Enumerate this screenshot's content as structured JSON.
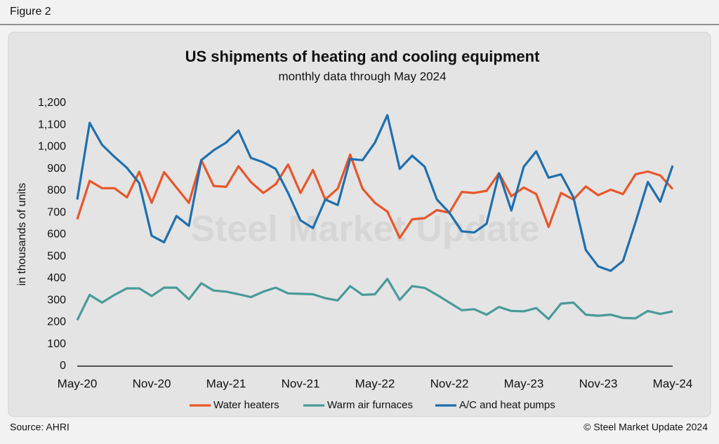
{
  "page": {
    "figure_label": "Figure 2",
    "source": "Source: AHRI",
    "copyright": "© Steel Market Update 2024",
    "watermark": "Steel Market Update"
  },
  "chart_data": {
    "type": "line",
    "title": "US shipments of heating and cooling equipment",
    "subtitle": "monthly data through May 2024",
    "y_label": "in thousands of units",
    "categories": [
      "May-20",
      null,
      null,
      null,
      null,
      null,
      "Nov-20",
      null,
      null,
      null,
      null,
      null,
      "May-21",
      null,
      null,
      null,
      null,
      null,
      "Nov-21",
      null,
      null,
      null,
      null,
      null,
      "May-22",
      null,
      null,
      null,
      null,
      null,
      "Nov-22",
      null,
      null,
      null,
      null,
      null,
      "May-23",
      null,
      null,
      null,
      null,
      null,
      "Nov-23",
      null,
      null,
      null,
      null,
      null,
      "May-24"
    ],
    "series": [
      {
        "name": "Water heaters",
        "color": "#e8562a",
        "values": [
          670,
          845,
          812,
          812,
          770,
          887,
          745,
          885,
          815,
          745,
          940,
          822,
          818,
          912,
          840,
          790,
          830,
          920,
          790,
          895,
          760,
          810,
          965,
          810,
          745,
          705,
          585,
          670,
          675,
          712,
          700,
          795,
          790,
          800,
          880,
          775,
          815,
          785,
          635,
          790,
          760,
          820,
          780,
          805,
          785,
          875,
          888,
          870,
          808
        ]
      },
      {
        "name": "Warm air furnaces",
        "color": "#4a9a9a",
        "values": [
          210,
          325,
          290,
          325,
          355,
          355,
          320,
          358,
          358,
          305,
          378,
          345,
          340,
          328,
          315,
          340,
          358,
          332,
          330,
          328,
          310,
          300,
          365,
          325,
          328,
          398,
          302,
          365,
          357,
          325,
          290,
          255,
          260,
          235,
          270,
          252,
          250,
          265,
          215,
          285,
          290,
          235,
          230,
          235,
          220,
          218,
          252,
          238,
          250
        ]
      },
      {
        "name": "A/C and heat pumps",
        "color": "#1f6fad",
        "values": [
          760,
          1110,
          1010,
          955,
          905,
          835,
          595,
          565,
          685,
          640,
          940,
          985,
          1020,
          1075,
          950,
          930,
          900,
          790,
          665,
          630,
          760,
          735,
          945,
          940,
          1020,
          1145,
          900,
          960,
          910,
          760,
          700,
          615,
          610,
          650,
          880,
          710,
          910,
          980,
          860,
          875,
          770,
          530,
          455,
          435,
          480,
          655,
          840,
          750,
          915
        ]
      }
    ],
    "ylim": [
      0,
      1200
    ],
    "yticks": [
      0,
      100,
      200,
      300,
      400,
      500,
      600,
      700,
      800,
      900,
      {
        "value": 1000,
        "label": "1,000"
      },
      {
        "value": 1100,
        "label": "1,100"
      },
      {
        "value": 1200,
        "label": "1,200"
      }
    ],
    "grid": false
  }
}
